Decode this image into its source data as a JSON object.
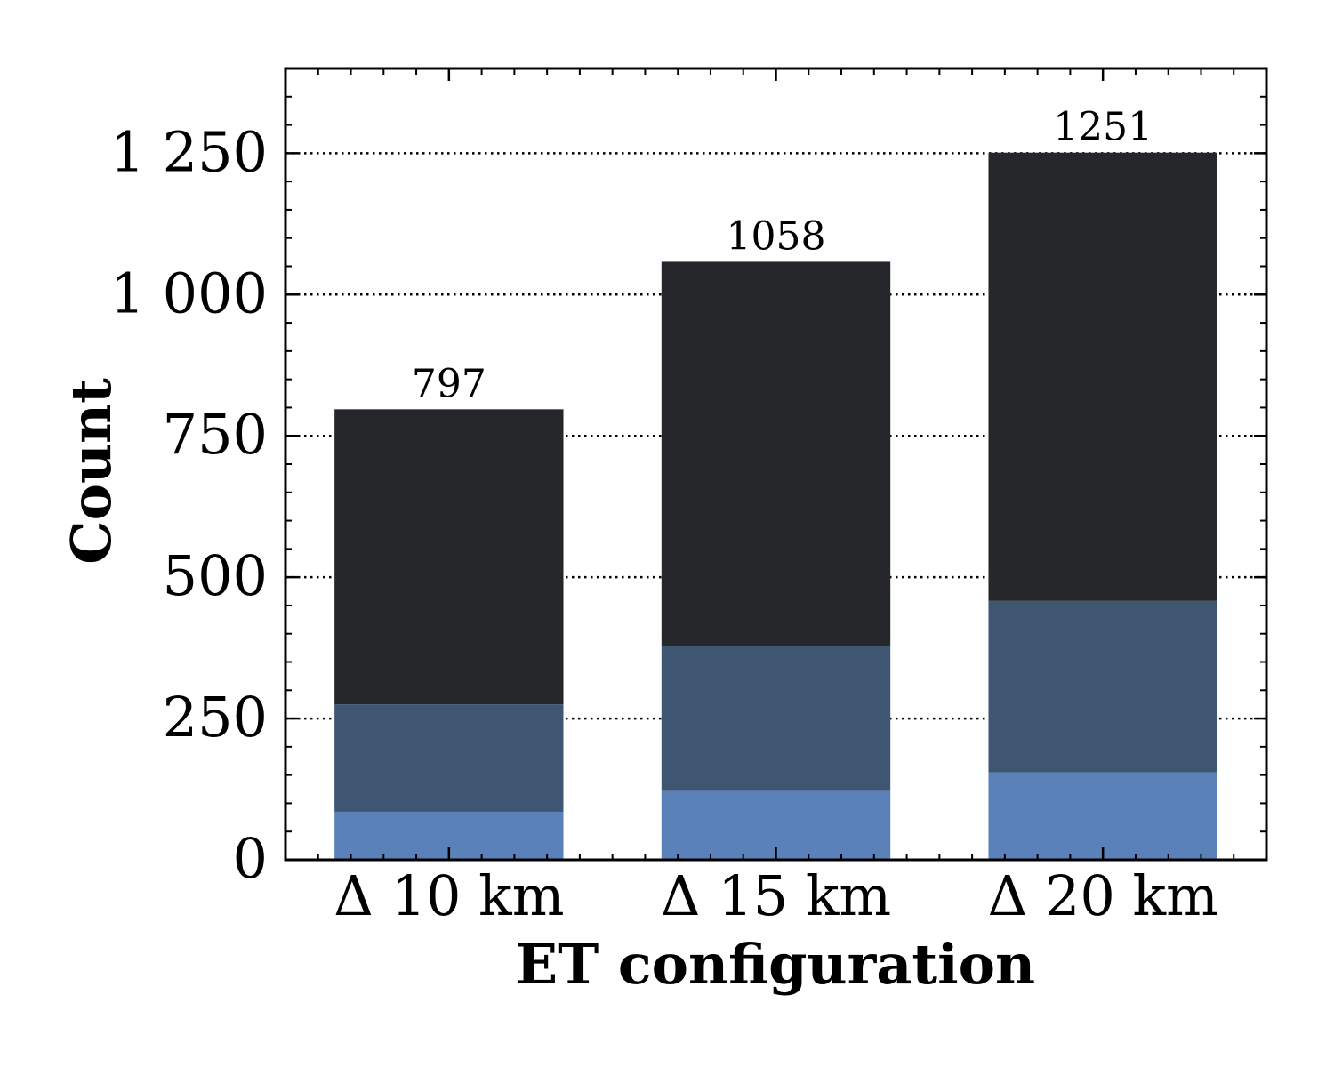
{
  "chart_data": {
    "type": "bar",
    "stacked": true,
    "title": "",
    "xlabel": "ET configuration",
    "ylabel": "Count",
    "categories": [
      "Δ 10 km",
      "Δ 15 km",
      "Δ 20 km"
    ],
    "series": [
      {
        "values": [
          85,
          122,
          155
        ],
        "color": "#5a82b8"
      },
      {
        "values": [
          190,
          256,
          303
        ],
        "color": "#3f5673"
      },
      {
        "values": [
          522,
          680,
          793
        ],
        "color": "#25272b"
      }
    ],
    "totals": [
      797,
      1058,
      1251
    ],
    "total_labels": [
      "797",
      "1058",
      "1251"
    ],
    "ylim": [
      0,
      1400
    ],
    "yticks": [
      0,
      250,
      500,
      750,
      1000,
      1250
    ],
    "ytick_labels": [
      "0",
      "250",
      "500",
      "750",
      "1 000",
      "1 250"
    ],
    "grid": "horizontal dotted at major y ticks",
    "legend": "none"
  }
}
